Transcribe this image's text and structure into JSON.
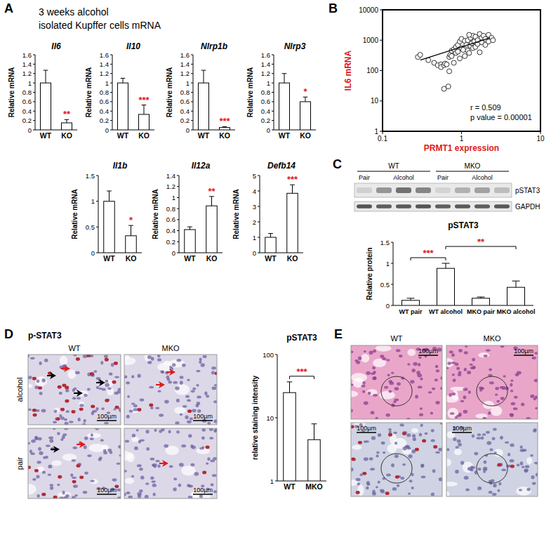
{
  "panel_labels": [
    "A",
    "B",
    "C",
    "D",
    "E"
  ],
  "panel_a_title": [
    "3 weeks alcohol",
    "isolated Kupffer cells mRNA"
  ],
  "chart_data": [
    {
      "type": "bar",
      "title": "Il6",
      "categories": [
        "WT",
        "KO"
      ],
      "values": [
        1.0,
        0.15
      ],
      "errors": [
        0.27,
        0.07
      ],
      "ylim": [
        0,
        1.6
      ],
      "yticks": [
        0,
        0.2,
        0.4,
        0.6,
        0.8,
        1,
        1.2,
        1.4,
        1.6
      ],
      "ylabel": "Relative mRNA",
      "color": "#ffffff",
      "annotations": [
        {
          "category": "KO",
          "text": "**"
        }
      ]
    },
    {
      "type": "bar",
      "title": "Il10",
      "categories": [
        "WT",
        "KO"
      ],
      "values": [
        1.0,
        0.33
      ],
      "errors": [
        0.1,
        0.2
      ],
      "ylim": [
        0,
        1.6
      ],
      "yticks": [
        0,
        0.2,
        0.4,
        0.6,
        0.8,
        1,
        1.2,
        1.4,
        1.6
      ],
      "ylabel": "Relative mRNA",
      "color": "#ffffff",
      "annotations": [
        {
          "category": "KO",
          "text": "***"
        }
      ]
    },
    {
      "type": "bar",
      "title": "Nlrp1b",
      "categories": [
        "WT",
        "KO"
      ],
      "values": [
        1.0,
        0.05
      ],
      "errors": [
        0.27,
        0.02
      ],
      "ylim": [
        0,
        1.6
      ],
      "yticks": [
        0,
        0.2,
        0.4,
        0.6,
        0.8,
        1,
        1.2,
        1.4,
        1.6
      ],
      "ylabel": "Relative mRNA",
      "color": "#ffffff",
      "annotations": [
        {
          "category": "KO",
          "text": "***"
        }
      ]
    },
    {
      "type": "bar",
      "title": "Nlrp3",
      "categories": [
        "WT",
        "KO"
      ],
      "values": [
        1.0,
        0.6
      ],
      "errors": [
        0.2,
        0.1
      ],
      "ylim": [
        0,
        1.6
      ],
      "yticks": [
        0,
        0.2,
        0.4,
        0.6,
        0.8,
        1,
        1.2,
        1.4,
        1.6
      ],
      "ylabel": "Relative mRNA",
      "color": "#ffffff",
      "annotations": [
        {
          "category": "KO",
          "text": "*"
        }
      ]
    },
    {
      "type": "bar",
      "title": "Il1b",
      "categories": [
        "WT",
        "KO"
      ],
      "values": [
        1.0,
        0.33
      ],
      "errors": [
        0.2,
        0.2
      ],
      "ylim": [
        0,
        1.5
      ],
      "yticks": [
        0,
        0.5,
        1,
        1.5
      ],
      "ylabel": "Relative mRNA",
      "color": "#ffffff",
      "annotations": [
        {
          "category": "KO",
          "text": "*"
        }
      ]
    },
    {
      "type": "bar",
      "title": "Il12a",
      "categories": [
        "WT",
        "KO"
      ],
      "values": [
        0.42,
        0.85
      ],
      "errors": [
        0.05,
        0.17
      ],
      "ylim": [
        0,
        1.4
      ],
      "yticks": [
        0,
        0.2,
        0.4,
        0.6,
        0.8,
        1,
        1.2,
        1.4
      ],
      "ylabel": "Relative mRNA",
      "color": "#ffffff",
      "annotations": [
        {
          "category": "KO",
          "text": "**"
        }
      ]
    },
    {
      "type": "bar",
      "title": "Defb14",
      "categories": [
        "WT",
        "KO"
      ],
      "values": [
        1.0,
        3.85
      ],
      "errors": [
        0.25,
        0.55
      ],
      "ylim": [
        0,
        5
      ],
      "yticks": [
        0,
        1,
        2,
        3,
        4,
        5
      ],
      "ylabel": "Relative mRNA",
      "color": "#ffffff",
      "annotations": [
        {
          "category": "KO",
          "text": "***"
        }
      ]
    },
    {
      "type": "scatter",
      "x": [
        0.28,
        0.3,
        0.38,
        0.45,
        0.5,
        0.55,
        0.55,
        0.6,
        0.62,
        0.6,
        0.68,
        0.7,
        0.7,
        0.72,
        0.75,
        0.75,
        0.8,
        0.8,
        0.85,
        0.85,
        0.9,
        0.9,
        0.95,
        0.95,
        1.0,
        1.0,
        1.05,
        1.1,
        1.1,
        1.15,
        1.2,
        1.2,
        1.25,
        1.3,
        1.3,
        1.35,
        1.4,
        1.4,
        1.45,
        1.5,
        1.5,
        1.6,
        1.6,
        1.7,
        1.7,
        1.8,
        1.8,
        1.9,
        2.0,
        2.0,
        2.2,
        2.2,
        2.4,
        2.5,
        1.25,
        0.65
      ],
      "values": [
        280,
        330,
        220,
        180,
        150,
        160,
        130,
        150,
        170,
        25,
        30,
        95,
        280,
        330,
        300,
        450,
        500,
        180,
        380,
        600,
        420,
        700,
        900,
        250,
        550,
        1100,
        480,
        950,
        300,
        700,
        1000,
        450,
        380,
        1200,
        650,
        800,
        1400,
        550,
        900,
        1300,
        600,
        750,
        1000,
        1600,
        400,
        1200,
        850,
        1400,
        1100,
        700,
        1500,
        900,
        1200,
        1000,
        1500,
        160
      ],
      "xlim": [
        0.1,
        10
      ],
      "ylim": [
        1,
        10000
      ],
      "xticks": [
        0.1,
        1,
        10
      ],
      "yticks": [
        1,
        10,
        100,
        1000,
        10000
      ],
      "log": true,
      "xlabel": "PRMT1 expression",
      "ylabel": "IL6 mRNA",
      "marker": "circle",
      "annotations": [
        "r = 0.509",
        "p value = 0.00001"
      ],
      "fit": {
        "x": [
          0.3,
          2.3
        ],
        "values": [
          220,
          1200
        ]
      }
    },
    {
      "type": "bar",
      "title": "pSTAT3",
      "categories": [
        "WT pair",
        "WT alcohol",
        "MKO pair",
        "MKO alcohol"
      ],
      "values": [
        0.12,
        0.88,
        0.17,
        0.43
      ],
      "errors": [
        0.05,
        0.12,
        0.03,
        0.15
      ],
      "ylim": [
        0,
        1.5
      ],
      "yticks": [
        0,
        0.5,
        1,
        1.5
      ],
      "ylabel": "Relative protein",
      "color": "#ffffff",
      "comparisons": [
        {
          "categories": [
            "WT pair",
            "WT alcohol"
          ],
          "text": "***"
        },
        {
          "categories": [
            "WT alcohol",
            "MKO alcohol"
          ],
          "text": "**"
        }
      ]
    },
    {
      "type": "bar",
      "title": "pSTAT3",
      "categories": [
        "WT",
        "MKO"
      ],
      "values": [
        25,
        4.5
      ],
      "errors": [
        12,
        3.5
      ],
      "ylim": [
        1,
        100
      ],
      "yticks": [
        1,
        10,
        100
      ],
      "log": "y",
      "ylabel": "relative staining intensity",
      "color": "#ffffff",
      "comparisons": [
        {
          "categories": [
            "WT",
            "MKO"
          ],
          "text": "***"
        }
      ]
    }
  ],
  "blot": {
    "groups": [
      "WT",
      "MKO"
    ],
    "conditions": [
      "Pair",
      "Alcohol",
      "Pair",
      "Alcohol"
    ],
    "rows": [
      "pSTAT3",
      "GAPDH"
    ]
  },
  "histology_d": {
    "title": "p-STAT3",
    "columns": [
      "WT",
      "MKO"
    ],
    "rows": [
      "alcohol",
      "pair"
    ],
    "scale_bar": "100µm"
  },
  "histology_e": {
    "columns": [
      "WT",
      "MKO"
    ],
    "scale_bar": "100µm"
  }
}
